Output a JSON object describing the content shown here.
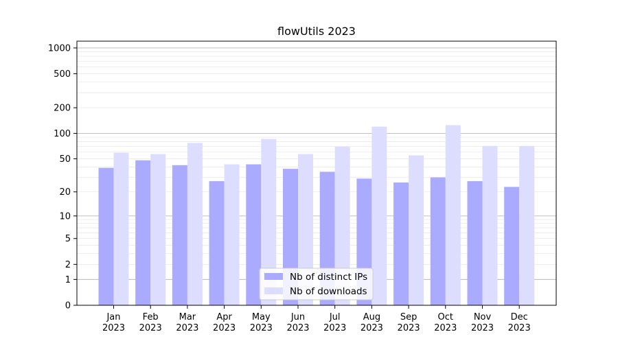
{
  "chart_data": {
    "type": "bar",
    "title": "flowUtils 2023",
    "xlabel": "",
    "ylabel": "",
    "y_scale": "log1p",
    "ylim": [
      0,
      1200
    ],
    "y_ticks": [
      0,
      1,
      2,
      5,
      10,
      20,
      50,
      100,
      200,
      500,
      1000
    ],
    "grid": true,
    "legend_position": "lower-center",
    "categories": [
      [
        "Jan",
        "2023"
      ],
      [
        "Feb",
        "2023"
      ],
      [
        "Mar",
        "2023"
      ],
      [
        "Apr",
        "2023"
      ],
      [
        "May",
        "2023"
      ],
      [
        "Jun",
        "2023"
      ],
      [
        "Jul",
        "2023"
      ],
      [
        "Aug",
        "2023"
      ],
      [
        "Sep",
        "2023"
      ],
      [
        "Oct",
        "2023"
      ],
      [
        "Nov",
        "2023"
      ],
      [
        "Dec",
        "2023"
      ]
    ],
    "series": [
      {
        "name": "Nb of distinct IPs",
        "color": "#aaaaff",
        "values": [
          39,
          48,
          42,
          27,
          43,
          38,
          35,
          29,
          26,
          30,
          27,
          23
        ]
      },
      {
        "name": "Nb of downloads",
        "color": "#ddddff",
        "values": [
          59,
          57,
          77,
          43,
          86,
          57,
          70,
          120,
          55,
          125,
          71,
          71
        ]
      }
    ]
  }
}
